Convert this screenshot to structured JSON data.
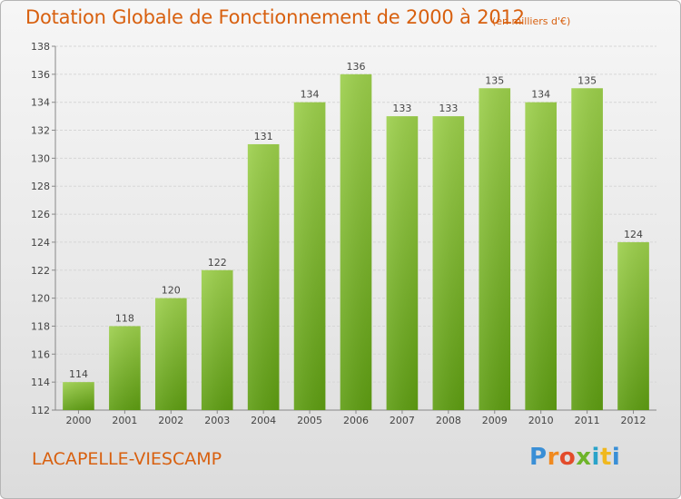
{
  "header": {
    "title": "Dotation Globale de Fonctionnement de 2000 à 2012",
    "unit": "(en milliers d'€)"
  },
  "commune": "LACAPELLE-VIESCAMP",
  "logo": {
    "letters": [
      "P",
      "r",
      "o",
      "x",
      "i",
      "t",
      "i"
    ]
  },
  "colors": {
    "title": "#d8600f",
    "bar_top": "#9ccf4b",
    "bar_bottom": "#5e9d12"
  },
  "chart_data": {
    "type": "bar",
    "categories": [
      "2000",
      "2001",
      "2002",
      "2003",
      "2004",
      "2005",
      "2006",
      "2007",
      "2008",
      "2009",
      "2010",
      "2011",
      "2012"
    ],
    "values": [
      114,
      118,
      120,
      122,
      131,
      134,
      136,
      133,
      133,
      135,
      134,
      135,
      124
    ],
    "ylim": [
      112,
      138
    ],
    "yticks": [
      112,
      114,
      116,
      118,
      120,
      122,
      124,
      126,
      128,
      130,
      132,
      134,
      136,
      138
    ],
    "grid": true,
    "xlabel": "",
    "ylabel": ""
  }
}
